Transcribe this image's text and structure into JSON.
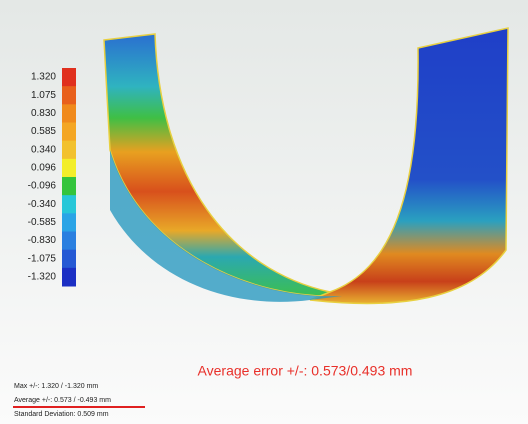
{
  "legend": {
    "labels": [
      "1.320",
      "1.075",
      "0.830",
      "0.585",
      "0.340",
      "0.096",
      "-0.096",
      "-0.340",
      "-0.585",
      "-0.830",
      "-1.075",
      "-1.320"
    ],
    "colors": [
      "#e0301e",
      "#e8601c",
      "#f08a1c",
      "#f4a623",
      "#f2c12e",
      "#f3ee2a",
      "#34c43c",
      "#27c7d8",
      "#2aa4e6",
      "#2a7fe0",
      "#2559d4",
      "#1b2fc4"
    ]
  },
  "annotation": "Average error  +/-: 0.573/0.493 mm",
  "stats": [
    "Max +/-: 1.320 / -1.320 mm",
    "Average +/-: 0.573 / -0.493 mm",
    "Standard Deviation: 0.509 mm"
  ]
}
